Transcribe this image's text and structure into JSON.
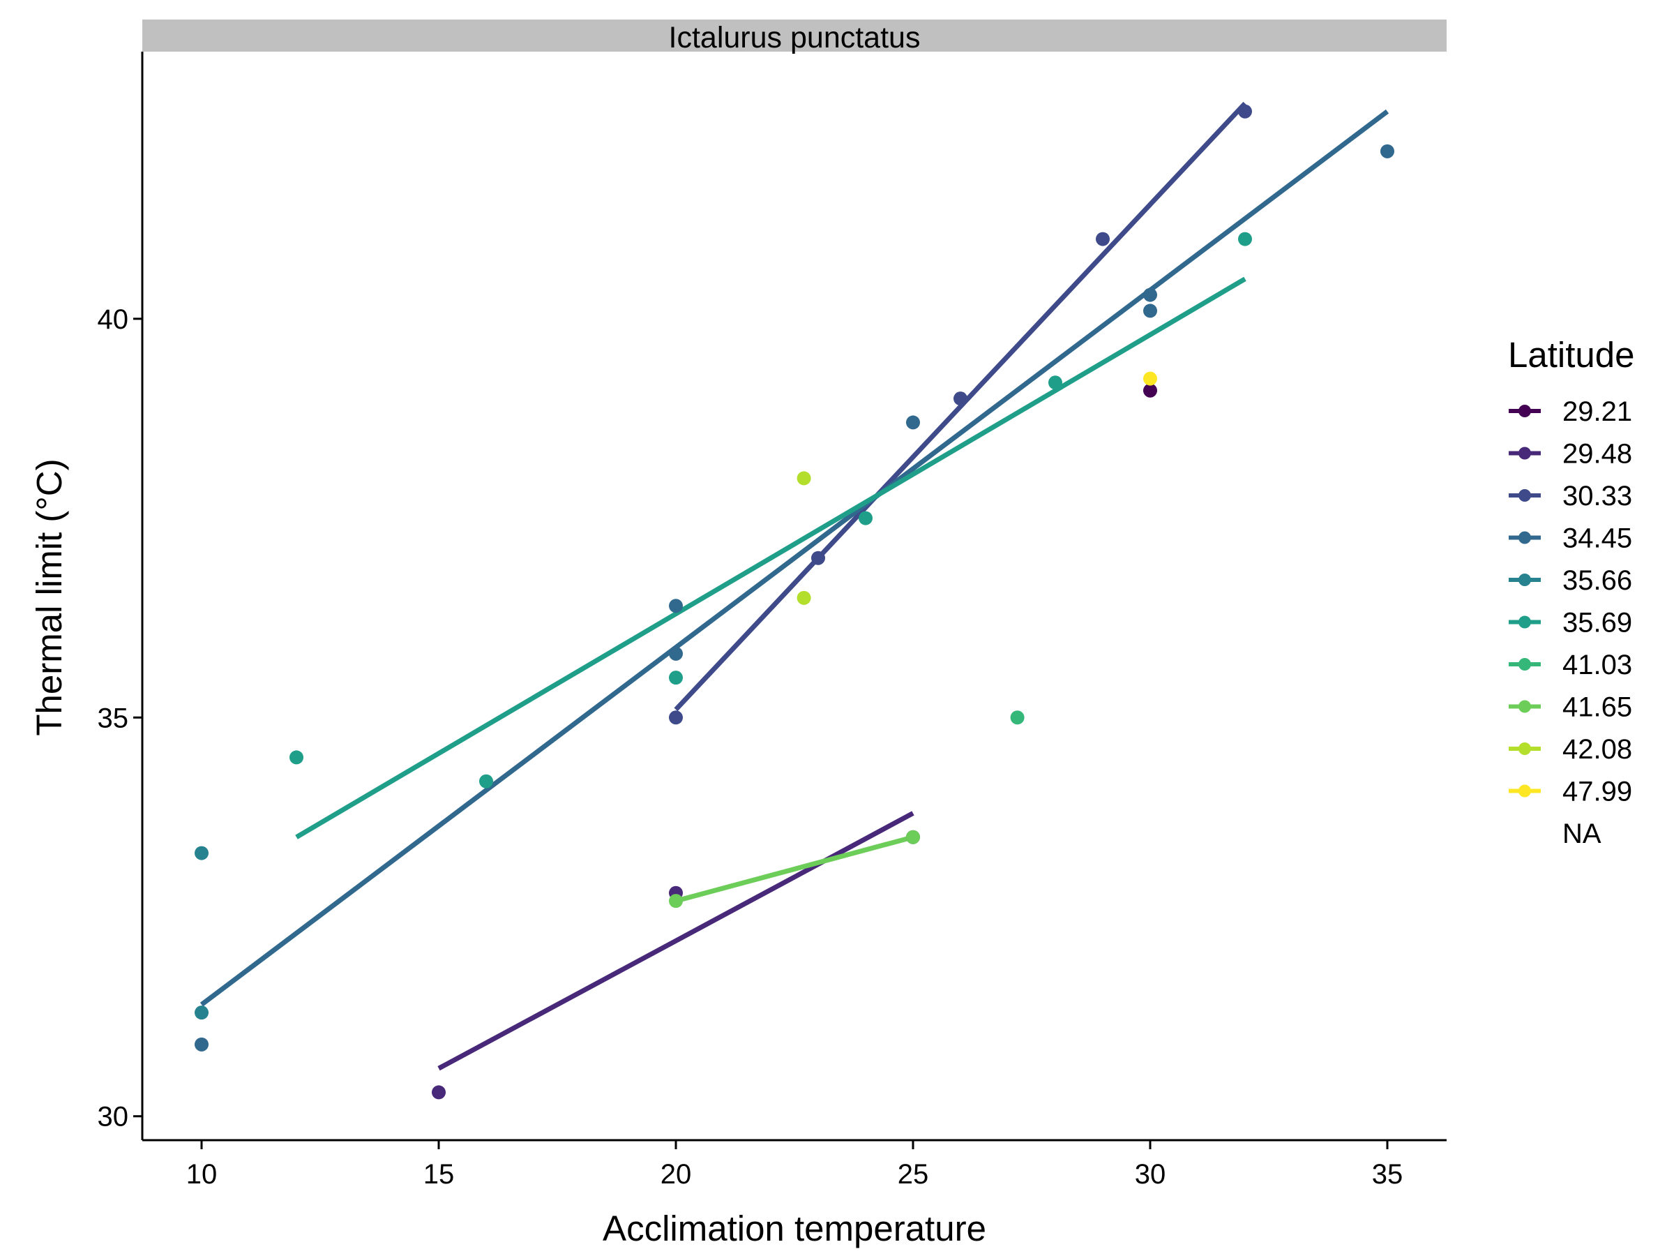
{
  "chart_data": {
    "type": "scatter",
    "panel_title": "Ictalurus punctatus",
    "xlabel": "Acclimation temperature",
    "ylabel": "Thermal limit (°C)",
    "xlim": [
      8.75,
      36.25
    ],
    "ylim": [
      29.7,
      43.35
    ],
    "x_ticks": [
      10,
      15,
      20,
      25,
      30,
      35
    ],
    "y_ticks": [
      30,
      35,
      40
    ],
    "grid": false,
    "legend": {
      "title": "Latitude",
      "position": "right"
    },
    "series": [
      {
        "name": "29.21",
        "color": "#440154",
        "points": [
          [
            30,
            39.1
          ]
        ],
        "fit": null
      },
      {
        "name": "29.48",
        "color": "#482878",
        "points": [
          [
            15,
            30.3
          ],
          [
            20,
            32.8
          ],
          [
            25,
            33.5
          ]
        ],
        "fit": [
          [
            15,
            30.6
          ],
          [
            25,
            33.8
          ]
        ]
      },
      {
        "name": "30.33",
        "color": "#3E4A89",
        "points": [
          [
            20,
            35.0
          ],
          [
            23,
            37.0
          ],
          [
            26,
            39.0
          ],
          [
            29,
            41.0
          ],
          [
            32,
            42.6
          ]
        ],
        "fit": [
          [
            20,
            35.1
          ],
          [
            32,
            42.7
          ]
        ]
      },
      {
        "name": "34.45",
        "color": "#31688E",
        "points": [
          [
            10,
            30.9
          ],
          [
            20,
            35.8
          ],
          [
            20,
            36.4
          ],
          [
            25,
            38.7
          ],
          [
            30,
            40.3
          ],
          [
            30,
            40.1
          ],
          [
            35,
            42.1
          ]
        ],
        "fit": [
          [
            10,
            31.4
          ],
          [
            35,
            42.6
          ]
        ]
      },
      {
        "name": "35.66",
        "color": "#26828E",
        "points": [
          [
            10,
            33.3
          ],
          [
            10,
            31.3
          ]
        ],
        "fit": null
      },
      {
        "name": "35.69",
        "color": "#1F9E89",
        "points": [
          [
            12,
            34.5
          ],
          [
            16,
            34.2
          ],
          [
            20,
            35.5
          ],
          [
            24,
            37.5
          ],
          [
            28,
            39.2
          ],
          [
            32,
            41.0
          ]
        ],
        "fit": [
          [
            12,
            33.5
          ],
          [
            32,
            40.5
          ]
        ]
      },
      {
        "name": "41.03",
        "color": "#35B779",
        "points": [
          [
            27.2,
            35.0
          ]
        ],
        "fit": null
      },
      {
        "name": "41.65",
        "color": "#6DCD59",
        "points": [
          [
            20,
            32.7
          ],
          [
            25,
            33.5
          ]
        ],
        "fit": [
          [
            20,
            32.7
          ],
          [
            25,
            33.5
          ]
        ]
      },
      {
        "name": "42.08",
        "color": "#B4DE2C",
        "points": [
          [
            22.7,
            38.0
          ],
          [
            22.7,
            36.5
          ]
        ],
        "fit": null
      },
      {
        "name": "47.99",
        "color": "#FDE725",
        "points": [
          [
            30,
            39.25
          ]
        ],
        "fit": null
      },
      {
        "name": "NA",
        "color": "#7F7F7F",
        "points": [],
        "fit": null
      }
    ]
  }
}
